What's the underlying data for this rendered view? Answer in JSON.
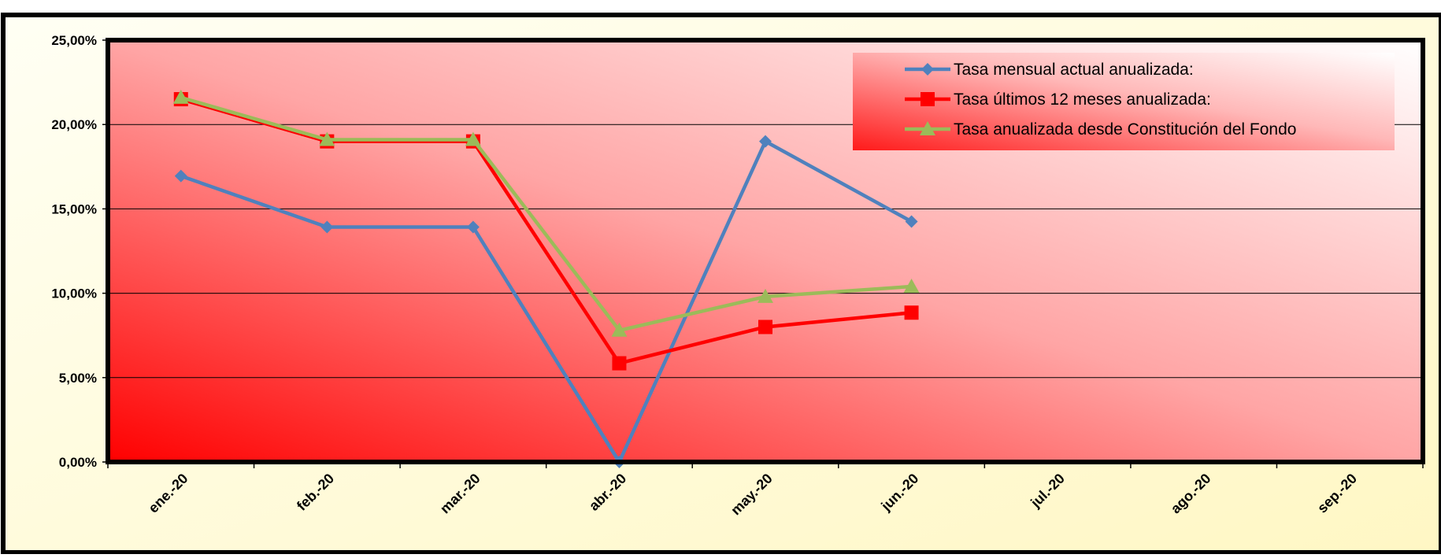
{
  "chart_data": {
    "type": "line",
    "categories": [
      "ene.-20",
      "feb.-20",
      "mar.-20",
      "abr.-20",
      "may.-20",
      "jun.-20",
      "jul.-20",
      "ago.-20",
      "sep.-20"
    ],
    "series": [
      {
        "name": "Tasa mensual actual anualizada:",
        "color": "#4F81BD",
        "marker": "diamond",
        "values": [
          16.95,
          13.92,
          13.92,
          0.0,
          19.0,
          14.25,
          null,
          null,
          null
        ]
      },
      {
        "name": "Tasa últimos 12 meses anualizada:",
        "color": "#FF0000",
        "marker": "square",
        "values": [
          21.5,
          19.0,
          19.0,
          5.85,
          8.0,
          8.85,
          null,
          null,
          null
        ]
      },
      {
        "name": "Tasa anualizada desde Constitución del Fondo",
        "color": "#9BBB59",
        "marker": "triangle",
        "values": [
          21.6,
          19.1,
          19.1,
          7.8,
          9.8,
          10.4,
          null,
          null,
          null
        ]
      }
    ],
    "ylim": [
      0,
      25
    ],
    "y_ticks": [
      "0,00%",
      "5,00%",
      "10,00%",
      "15,00%",
      "20,00%",
      "25,00%"
    ],
    "grid": true,
    "legend_position": "top-right",
    "title": "",
    "xlabel": "",
    "ylabel": ""
  }
}
